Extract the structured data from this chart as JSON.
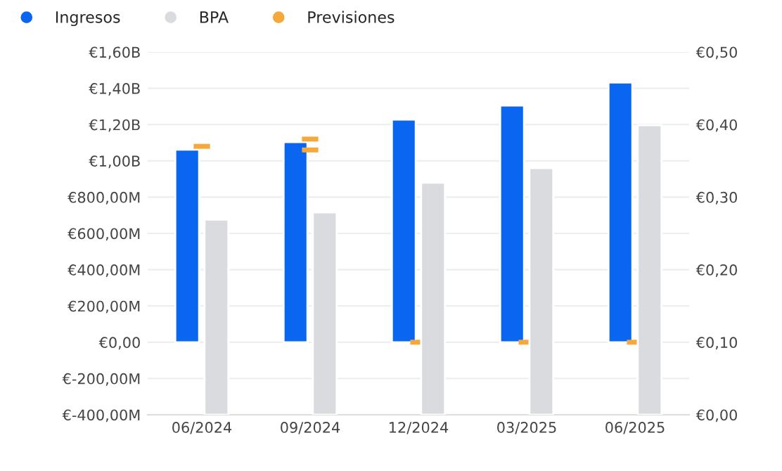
{
  "chart_data": {
    "type": "bar",
    "categories": [
      "06/2024",
      "09/2024",
      "12/2024",
      "03/2025",
      "06/2025"
    ],
    "series": [
      {
        "name": "Ingresos",
        "color": "#0a66f0",
        "values": [
          1062000000,
          1103000000,
          1227000000,
          1305000000,
          1432000000
        ]
      },
      {
        "name": "BPA",
        "axis": "y2",
        "color": "#d9dbde",
        "values": [
          0.269,
          0.279,
          0.32,
          0.34,
          0.399
        ]
      },
      {
        "name": "Previsiones",
        "type": "scatter",
        "color": "#f5a93a",
        "values": [
          1080000000,
          1120000000,
          0,
          0,
          0
        ]
      },
      {
        "type": "scatter",
        "axis": "y2",
        "color": "#f5a93a",
        "values": [
          null,
          0.365,
          null,
          null,
          null
        ]
      }
    ],
    "ylim": [
      -400000000,
      1600000000
    ],
    "yticks": [
      {
        "value": -400000000,
        "label": "€-400,00M"
      },
      {
        "value": -200000000,
        "label": "€-200,00M"
      },
      {
        "value": 0,
        "label": "€0,00"
      },
      {
        "value": 200000000,
        "label": "€200,00M"
      },
      {
        "value": 400000000,
        "label": "€400,00M"
      },
      {
        "value": 600000000,
        "label": "€600,00M"
      },
      {
        "value": 800000000,
        "label": "€800,00M"
      },
      {
        "value": 1000000000,
        "label": "€1,00B"
      },
      {
        "value": 1200000000,
        "label": "€1,20B"
      },
      {
        "value": 1400000000,
        "label": "€1,40B"
      },
      {
        "value": 1600000000,
        "label": "€1,60B"
      }
    ],
    "y2lim": [
      0,
      0.5
    ],
    "y2ticks": [
      {
        "value": 0,
        "label": "€0,00"
      },
      {
        "value": 0.1,
        "label": "€0,10"
      },
      {
        "value": 0.2,
        "label": "€0,20"
      },
      {
        "value": 0.3,
        "label": "€0,30"
      },
      {
        "value": 0.4,
        "label": "€0,40"
      },
      {
        "value": 0.5,
        "label": "€0,50"
      }
    ],
    "grid": "y",
    "legend": "top left"
  }
}
